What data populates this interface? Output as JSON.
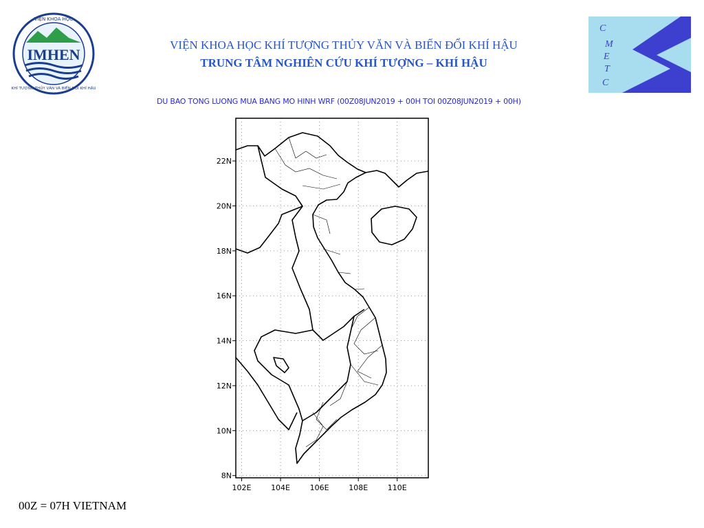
{
  "header": {
    "title_line1": "VIỆN KHOA HỌC KHÍ TƯỢNG THỦY VĂN VÀ BIẾN ĐỔI KHÍ HẬU",
    "title_line2": "TRUNG TÂM NGHIÊN CỨU KHÍ TƯỢNG – KHÍ HẬU"
  },
  "logo_left": {
    "top": "VIỆN KHOA HỌC",
    "name": "IMHEN",
    "ring": "KHÍ TƯỢNG THỦY VĂN VÀ BIẾN ĐỔI KHÍ HẬU"
  },
  "logo_right": {
    "letters": [
      "C",
      "M",
      "E",
      "T",
      "C"
    ]
  },
  "map": {
    "title": "DU BAO TONG LUONG MUA BANG MO HINH WRF (00Z08JUN2019 + 00H TOI 00Z08JUN2019 + 00H)",
    "latlim": [
      7.9,
      23.9
    ],
    "lonlim": [
      101.7,
      111.6
    ],
    "lat_ticks": [
      {
        "value": 8,
        "label": "8N"
      },
      {
        "value": 10,
        "label": "10N"
      },
      {
        "value": 12,
        "label": "12N"
      },
      {
        "value": 14,
        "label": "14N"
      },
      {
        "value": 16,
        "label": "16N"
      },
      {
        "value": 18,
        "label": "18N"
      },
      {
        "value": 20,
        "label": "20N"
      },
      {
        "value": 22,
        "label": "22N"
      }
    ],
    "lon_ticks": [
      {
        "value": 102,
        "label": "102E"
      },
      {
        "value": 104,
        "label": "104E"
      },
      {
        "value": 106,
        "label": "106E"
      },
      {
        "value": 108,
        "label": "108E"
      },
      {
        "value": 110,
        "label": "110E"
      }
    ]
  },
  "footer": {
    "note": "00Z = 07H VIETNAM"
  }
}
